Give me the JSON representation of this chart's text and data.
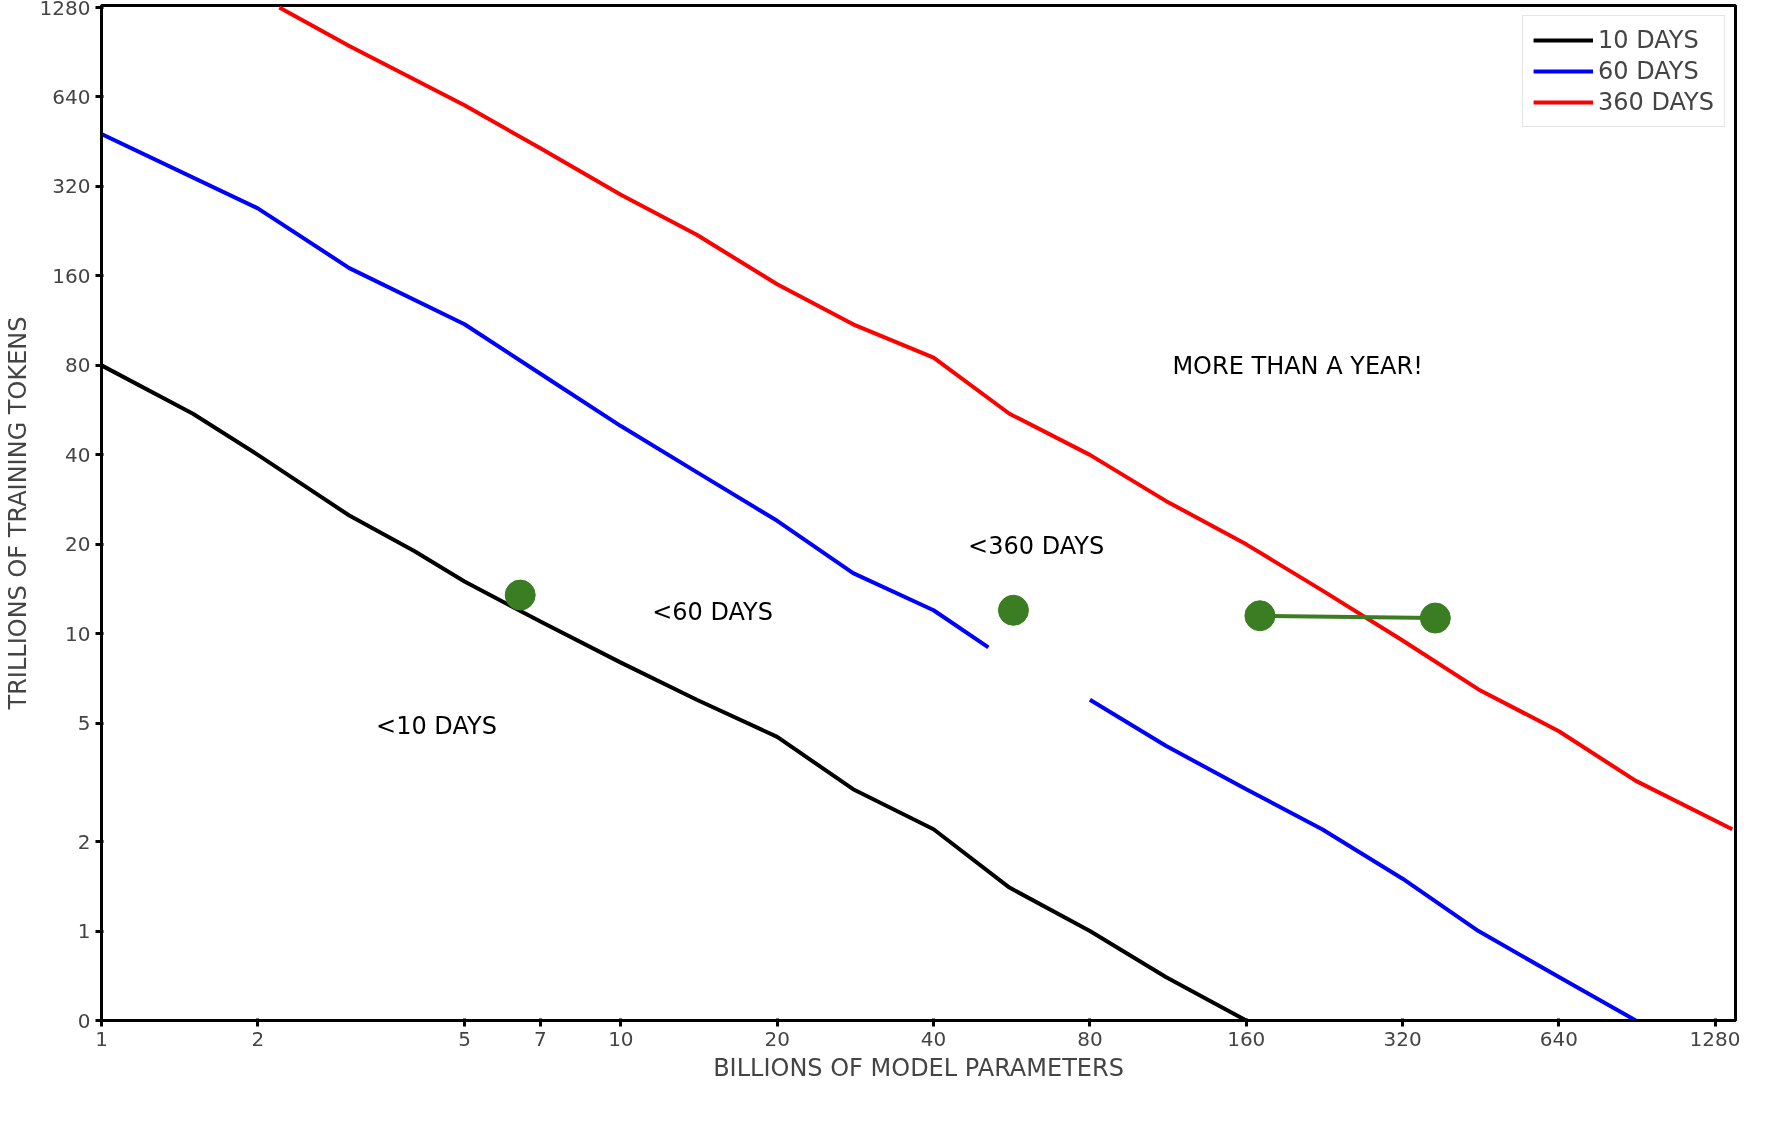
{
  "chart_data": {
    "type": "line",
    "xlabel": "BILLIONS OF MODEL PARAMETERS",
    "ylabel": "TRILLIONS OF TRAINING TOKENS",
    "log": "xy",
    "xlim": [
      1,
      1400
    ],
    "ylim": [
      0.5,
      1300
    ],
    "xticks": [
      1,
      2,
      5,
      7,
      10,
      20,
      40,
      80,
      160,
      320,
      640,
      1280
    ],
    "yticks": [
      {
        "value": 0.5,
        "label": "0"
      },
      1,
      2,
      5,
      10,
      20,
      40,
      80,
      160,
      320,
      640,
      1280
    ],
    "grid": false,
    "legend": "top right",
    "marker": "none",
    "line_style": "solid",
    "series": [
      {
        "name": "10 DAYS",
        "color": "#000000",
        "x": [
          1,
          1.5,
          2,
          3,
          4,
          5,
          7,
          10,
          14,
          20,
          28,
          40,
          56,
          80,
          112,
          160
        ],
        "values": [
          80,
          55,
          40,
          25,
          19,
          15,
          11,
          8,
          6,
          4.5,
          3,
          2.2,
          1.4,
          1,
          0.7,
          0.5
        ]
      },
      {
        "name": "60 DAYS",
        "color": "#0000ff",
        "x": [
          1,
          2,
          3,
          5,
          7,
          10,
          14,
          20,
          28,
          40,
          51,
          65,
          80,
          112,
          160,
          224,
          320,
          448,
          640,
          900
        ],
        "values": [
          480,
          270,
          170,
          110,
          75,
          50,
          35,
          24,
          16,
          12,
          9,
          null,
          6,
          4.2,
          3,
          2.2,
          1.5,
          1,
          0.7,
          0.5
        ]
      },
      {
        "name": "360 DAYS",
        "color": "#ff0000",
        "x": [
          2.2,
          3,
          5,
          7,
          10,
          14,
          20,
          28,
          40,
          56,
          80,
          112,
          160,
          224,
          320,
          448,
          640,
          900,
          1380
        ],
        "values": [
          1280,
          950,
          600,
          430,
          300,
          220,
          150,
          110,
          85,
          55,
          40,
          28,
          20,
          14,
          9.5,
          6.5,
          4.7,
          3.2,
          2.2
        ]
      },
      {
        "type": "scatter",
        "marker": "circle",
        "color": "#3a7d22",
        "x": [
          6.4,
          57
        ],
        "values": [
          13.5,
          12
        ]
      },
      {
        "type": "line",
        "marker": "circle",
        "color": "#3a7d22",
        "x": [
          170,
          370
        ],
        "values": [
          11.5,
          11.3
        ]
      }
    ],
    "annotations": [
      "<10 DAYS",
      "<60 DAYS",
      "<360 DAYS",
      "MORE THAN A YEAR!"
    ]
  }
}
